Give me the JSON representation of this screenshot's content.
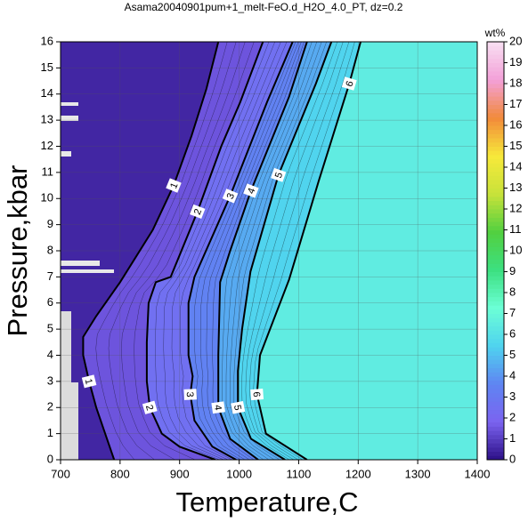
{
  "chart_data": {
    "type": "contour",
    "title": "Asama20040901pum+1_melt-FeO.d_H2O_4.0_PT, dz=0.2",
    "x_label": "Temperature,C",
    "y_label": "Pressure,kbar",
    "xlim": [
      700,
      1400
    ],
    "ylim": [
      0,
      16
    ],
    "xticks": [
      700,
      800,
      900,
      1000,
      1100,
      1200,
      1300,
      1400
    ],
    "yticks": [
      0,
      1,
      2,
      3,
      4,
      5,
      6,
      7,
      8,
      9,
      10,
      11,
      12,
      13,
      14,
      15,
      16
    ],
    "grid": true,
    "colorbar_label": "wt%",
    "clim": [
      0,
      20
    ],
    "cticks": [
      0,
      1,
      2,
      3,
      4,
      5,
      6,
      7,
      8,
      9,
      10,
      11,
      12,
      13,
      14,
      15,
      16,
      17,
      18,
      19,
      20
    ],
    "colormap": [
      "#2c0f86",
      "#7b63f0",
      "#5f85f2",
      "#4fd3ef",
      "#6cffd6",
      "#3ce080",
      "#52d040",
      "#c8e23a",
      "#f7e93a",
      "#f28a3a",
      "#f3a0d8",
      "#f8e0f2"
    ],
    "line_color": "#000000",
    "contours": [
      {
        "level": 1,
        "x": [
          790,
          775,
          760,
          748,
          738,
          738,
          760,
          800,
          855,
          890,
          920,
          945,
          965
        ],
        "y": [
          0,
          1,
          2,
          3,
          4,
          4.7,
          5.5,
          6.8,
          8.8,
          10.5,
          12.4,
          14.2,
          16
        ]
      },
      {
        "level": 2,
        "x": [
          960,
          900,
          870,
          850,
          845,
          845,
          848,
          860,
          885,
          930,
          970,
          1002,
          1040
        ],
        "y": [
          0,
          0.5,
          1,
          2,
          3,
          4.5,
          6,
          6.8,
          7,
          9.5,
          12,
          13.7,
          16
        ]
      },
      {
        "level": 3,
        "x": [
          995,
          955,
          925,
          918,
          922,
          915,
          915,
          925,
          985,
          1047,
          1090
        ],
        "y": [
          0,
          0.5,
          1.5,
          2.5,
          3.2,
          4,
          6,
          7,
          10.1,
          13.7,
          16
        ]
      },
      {
        "level": 4,
        "x": [
          1032,
          985,
          965,
          965,
          968,
          985,
          1020,
          1084,
          1114
        ],
        "y": [
          0,
          0.8,
          2,
          4,
          6.8,
          8,
          10.3,
          13.9,
          16
        ]
      },
      {
        "level": 5,
        "x": [
          1077,
          1020,
          998,
          998,
          1005,
          1019,
          1066,
          1129,
          1155
        ],
        "y": [
          0,
          0.8,
          2,
          3.4,
          5,
          7.2,
          10.9,
          14.4,
          16
        ]
      },
      {
        "level": 6,
        "x": [
          1114,
          1045,
          1030,
          1035,
          1084,
          1134,
          1185,
          1204
        ],
        "y": [
          0,
          1,
          2.5,
          4,
          6.9,
          10.7,
          14.4,
          16
        ]
      }
    ]
  }
}
